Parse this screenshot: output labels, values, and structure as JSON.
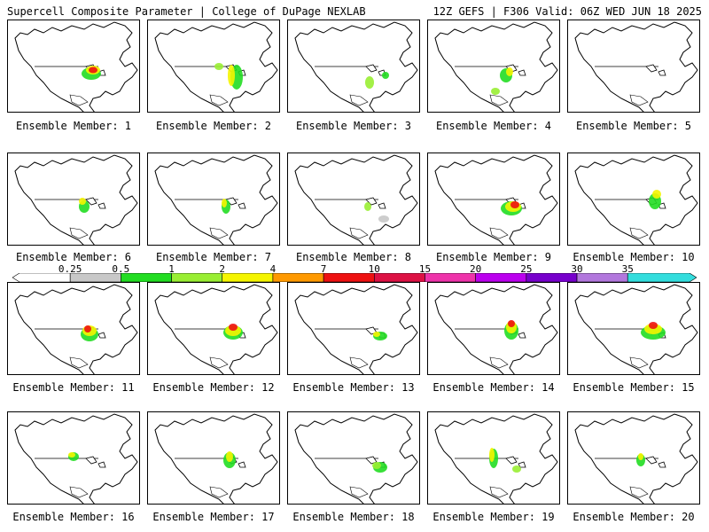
{
  "header": {
    "title": "Supercell Composite Parameter | College of DuPage NEXLAB",
    "run_info": "12Z GEFS | F306 Valid: 06Z WED JUN 18 2025"
  },
  "members": [
    {
      "caption": "Ensemble Member: 1"
    },
    {
      "caption": "Ensemble Member: 2"
    },
    {
      "caption": "Ensemble Member: 3"
    },
    {
      "caption": "Ensemble Member: 4"
    },
    {
      "caption": "Ensemble Member: 5"
    },
    {
      "caption": "Ensemble Member: 6"
    },
    {
      "caption": "Ensemble Member: 7"
    },
    {
      "caption": "Ensemble Member: 8"
    },
    {
      "caption": "Ensemble Member: 9"
    },
    {
      "caption": "Ensemble Member: 10"
    },
    {
      "caption": "Ensemble Member: 11"
    },
    {
      "caption": "Ensemble Member: 12"
    },
    {
      "caption": "Ensemble Member: 13"
    },
    {
      "caption": "Ensemble Member: 14"
    },
    {
      "caption": "Ensemble Member: 15"
    },
    {
      "caption": "Ensemble Member: 16"
    },
    {
      "caption": "Ensemble Member: 17"
    },
    {
      "caption": "Ensemble Member: 18"
    },
    {
      "caption": "Ensemble Member: 19"
    },
    {
      "caption": "Ensemble Member: 20"
    }
  ],
  "colorbar": {
    "ticks": [
      "0.25",
      "0.5",
      "1",
      "2",
      "4",
      "7",
      "10",
      "15",
      "20",
      "25",
      "30",
      "35"
    ],
    "colors": [
      "#ffffff",
      "#c8c8c8",
      "#22dd22",
      "#99ee33",
      "#f5f500",
      "#ff9900",
      "#ee1111",
      "#dd1144",
      "#ee33aa",
      "#bb00ee",
      "#7700cc",
      "#b277dd",
      "#33dddd"
    ]
  }
}
